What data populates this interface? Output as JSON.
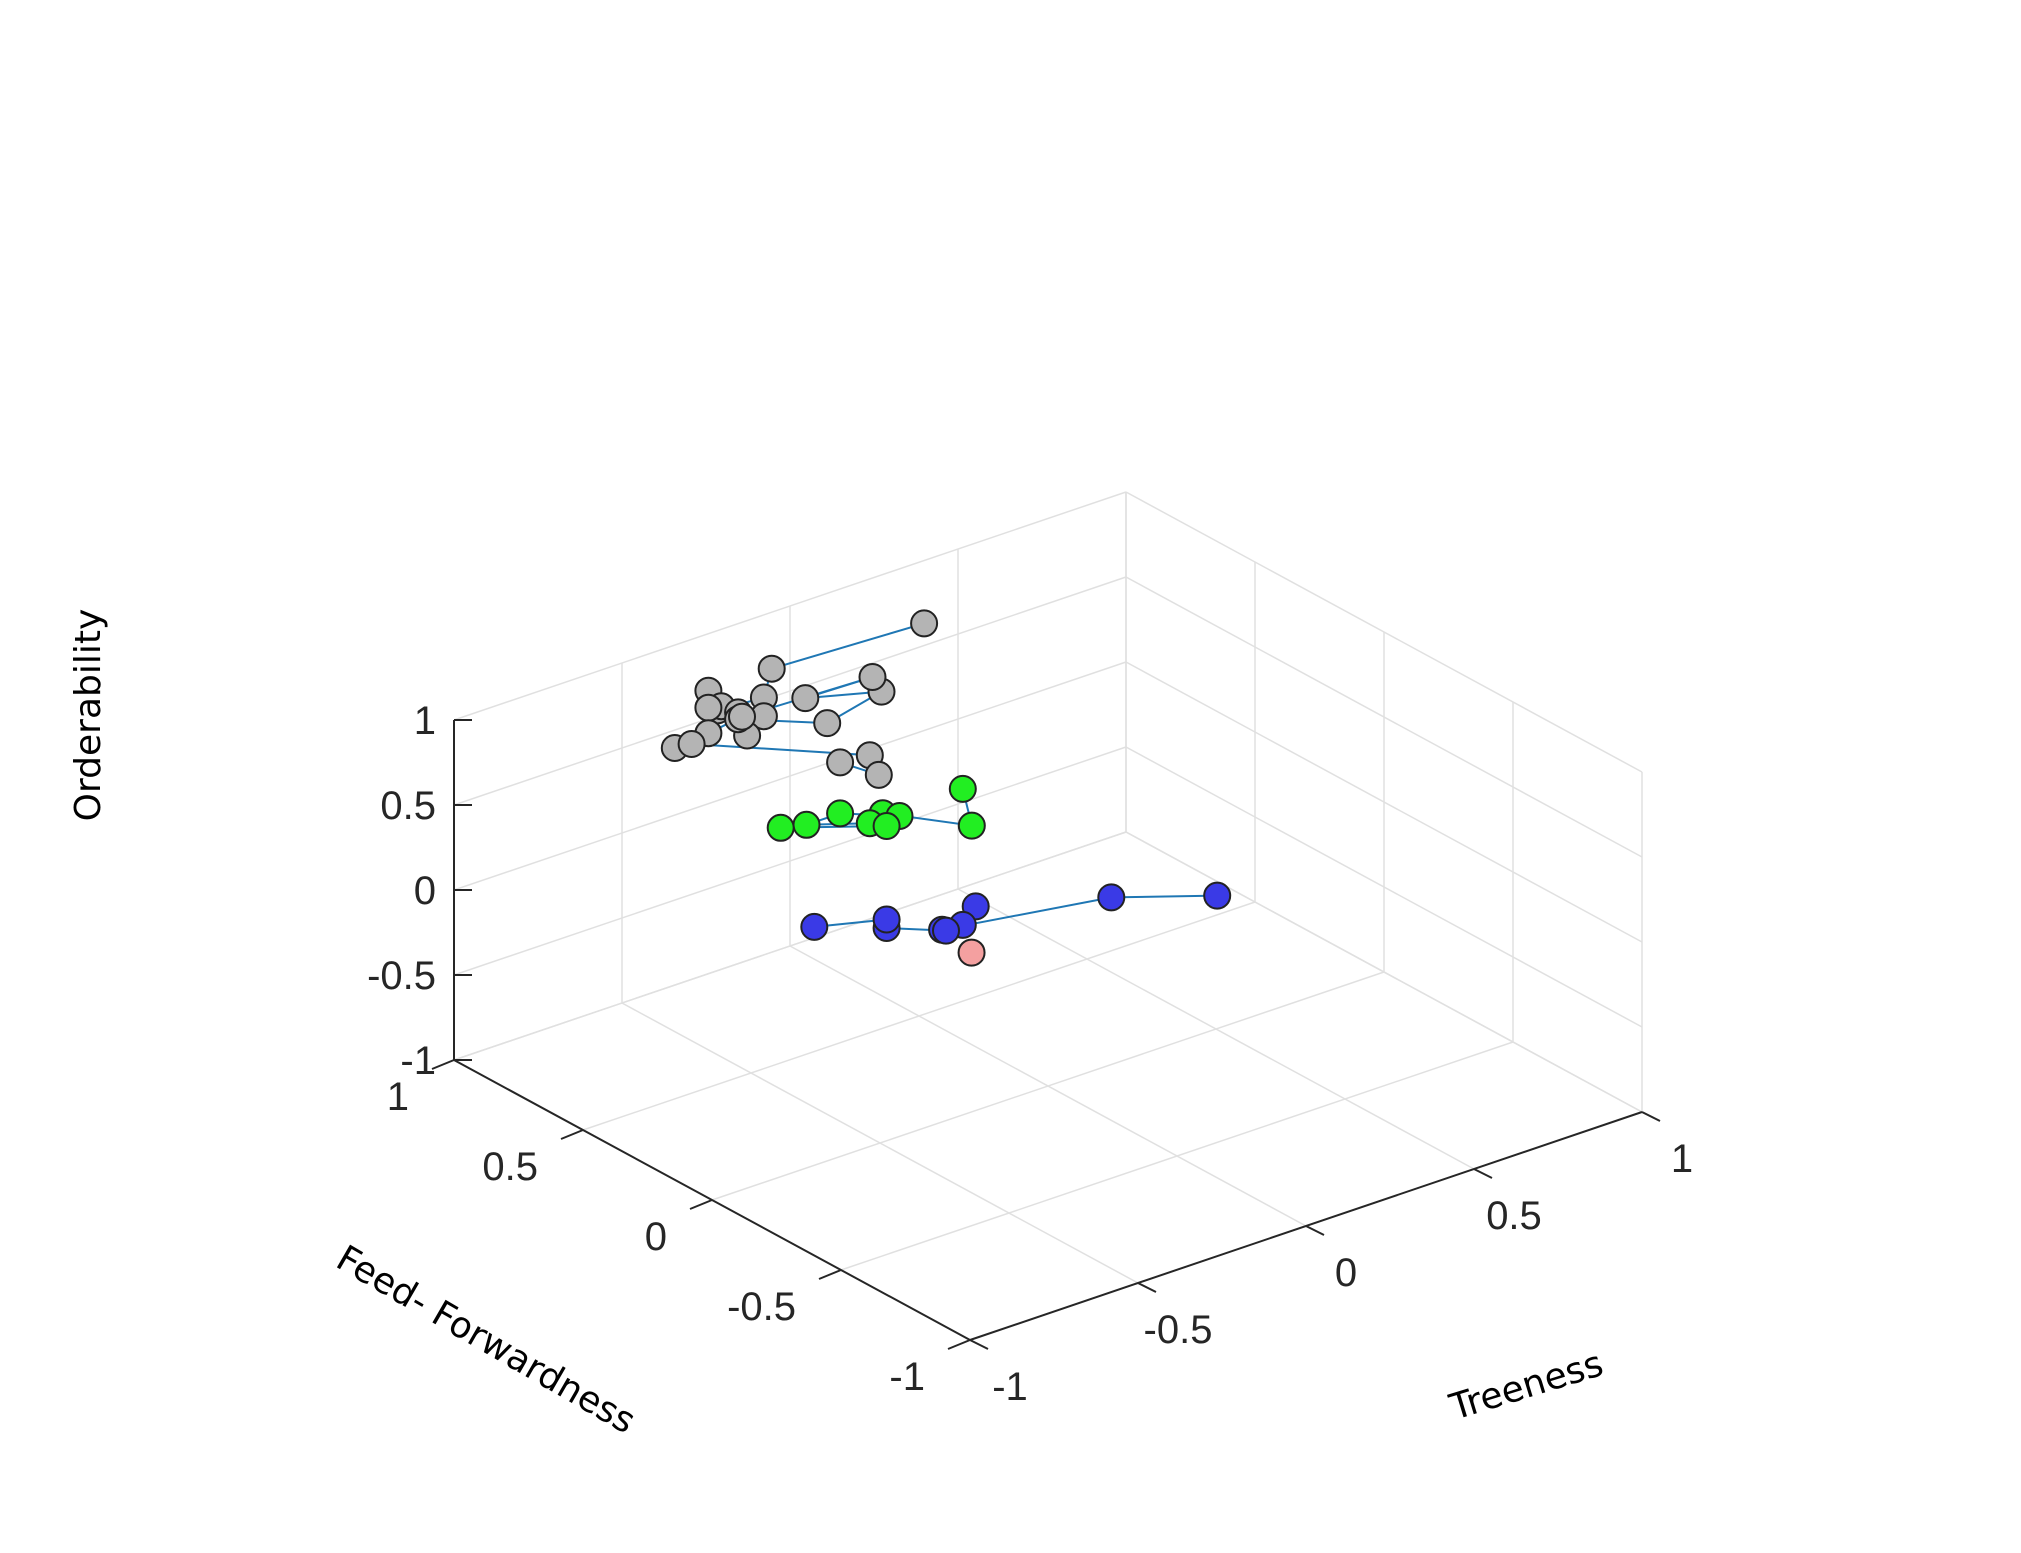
{
  "chart_data": {
    "type": "scatter3d",
    "xlabel": "Treeness",
    "ylabel": "Feed- Forwardness",
    "zlabel": "Orderability",
    "xlim": [
      -1,
      1
    ],
    "ylim": [
      -1,
      1
    ],
    "zlim": [
      -1,
      1
    ],
    "grid": true,
    "x_ticks": [
      "-1",
      "-0.5",
      "0",
      "0.5",
      "1"
    ],
    "y_ticks": [
      "-1",
      "-0.5",
      "0",
      "0.5",
      "1"
    ],
    "z_ticks": [
      "-1",
      "-0.5",
      "0",
      "0.5",
      "1"
    ],
    "line_color": "#1f77b4",
    "series": [
      {
        "color": "#b4b4b4",
        "points": [
          [
            -0.1,
            0.35,
            1.5
          ],
          [
            -0.4,
            0.55,
            1.27
          ],
          [
            -0.5,
            0.45,
            1.25
          ],
          [
            -0.6,
            0.5,
            1.2
          ],
          [
            -0.55,
            0.6,
            1.2
          ],
          [
            -0.55,
            0.55,
            1.15
          ],
          [
            -0.5,
            0.45,
            1.14
          ],
          [
            -0.55,
            0.6,
            1.1
          ],
          [
            -0.5,
            0.55,
            1.08
          ],
          [
            -0.55,
            0.45,
            1.06
          ],
          [
            -0.5,
            0.55,
            1.04
          ],
          [
            -0.35,
            0.4,
            1.04
          ],
          [
            -0.15,
            0.45,
            1.05
          ],
          [
            -0.3,
            0.55,
            1.03
          ],
          [
            -0.1,
            0.55,
            1.02
          ],
          [
            -0.45,
            0.6,
            0.98
          ],
          [
            -0.55,
            0.6,
            0.95
          ],
          [
            -0.65,
            0.6,
            0.93
          ],
          [
            -0.6,
            0.6,
            0.92
          ],
          [
            -0.3,
            0.3,
            0.9
          ],
          [
            -0.35,
            0.2,
            0.9
          ],
          [
            -0.35,
            0.35,
            0.85
          ]
        ]
      },
      {
        "color": "#22ee22",
        "points": [
          [
            -0.1,
            0.2,
            0.65
          ],
          [
            -0.15,
            0.1,
            0.55
          ],
          [
            -0.3,
            0.25,
            0.6
          ],
          [
            -0.25,
            0.25,
            0.55
          ],
          [
            -0.35,
            0.35,
            0.55
          ],
          [
            -0.45,
            0.35,
            0.55
          ],
          [
            -0.3,
            0.3,
            0.5
          ],
          [
            -0.25,
            0.3,
            0.45
          ],
          [
            -0.45,
            0.45,
            0.45
          ]
        ]
      },
      {
        "color": "#3a3ae6",
        "points": [
          [
            0.35,
            -0.2,
            0.05
          ],
          [
            0.15,
            -0.05,
            0.05
          ],
          [
            -0.2,
            0.15,
            -0.07
          ],
          [
            -0.1,
            0.15,
            0.0
          ],
          [
            -0.1,
            0.2,
            -0.15
          ],
          [
            -0.15,
            0.2,
            -0.15
          ],
          [
            -0.25,
            0.3,
            -0.15
          ],
          [
            -0.25,
            0.3,
            -0.1
          ],
          [
            -0.35,
            0.45,
            -0.2
          ]
        ]
      },
      {
        "color": "#f4a0a0",
        "points": [
          [
            -0.12,
            0.14,
            -0.25
          ]
        ]
      }
    ]
  }
}
